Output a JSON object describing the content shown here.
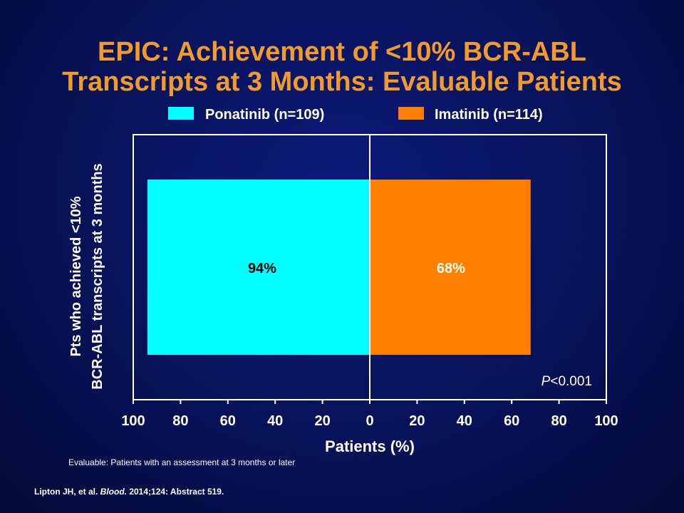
{
  "title": {
    "line1": "EPIC: Achievement of <10% BCR-ABL",
    "line2": "Transcripts at 3 Months: Evaluable Patients"
  },
  "colors": {
    "background": "#081258",
    "title": "#f29a2a",
    "ponatinib": "#00ffff",
    "imatinib": "#ff8000",
    "axis": "#ffffff"
  },
  "chart_data": {
    "type": "bar",
    "orientation": "horizontal-butterfly",
    "series": [
      {
        "name": "Ponatinib (n=109)",
        "value": 94,
        "label": "94%",
        "side": "left",
        "color": "#00ffff"
      },
      {
        "name": "Imatinib (n=114)",
        "value": 68,
        "label": "68%",
        "side": "right",
        "color": "#ff8000"
      }
    ],
    "xlabel": "Patients (%)",
    "ylabel_line1": "Pts who achieved <10%",
    "ylabel_line2": "BCR-ABL transcripts at 3 months",
    "xlim": [
      -100,
      100
    ],
    "xticks": [
      -100,
      -80,
      -60,
      -40,
      -20,
      0,
      20,
      40,
      60,
      80,
      100
    ],
    "xtick_labels": [
      "100",
      "80",
      "60",
      "40",
      "20",
      "0",
      "20",
      "40",
      "60",
      "80",
      "100"
    ],
    "annotation": {
      "italic": "P",
      "rest": "<0.001"
    },
    "legend_position": "top",
    "grid": false
  },
  "footnote": "Evaluable: Patients with an assessment at 3 months or later",
  "citation": {
    "authors": "Lipton JH, et al. ",
    "journal": "Blood.",
    "rest": " 2014;124: Abstract 519."
  }
}
